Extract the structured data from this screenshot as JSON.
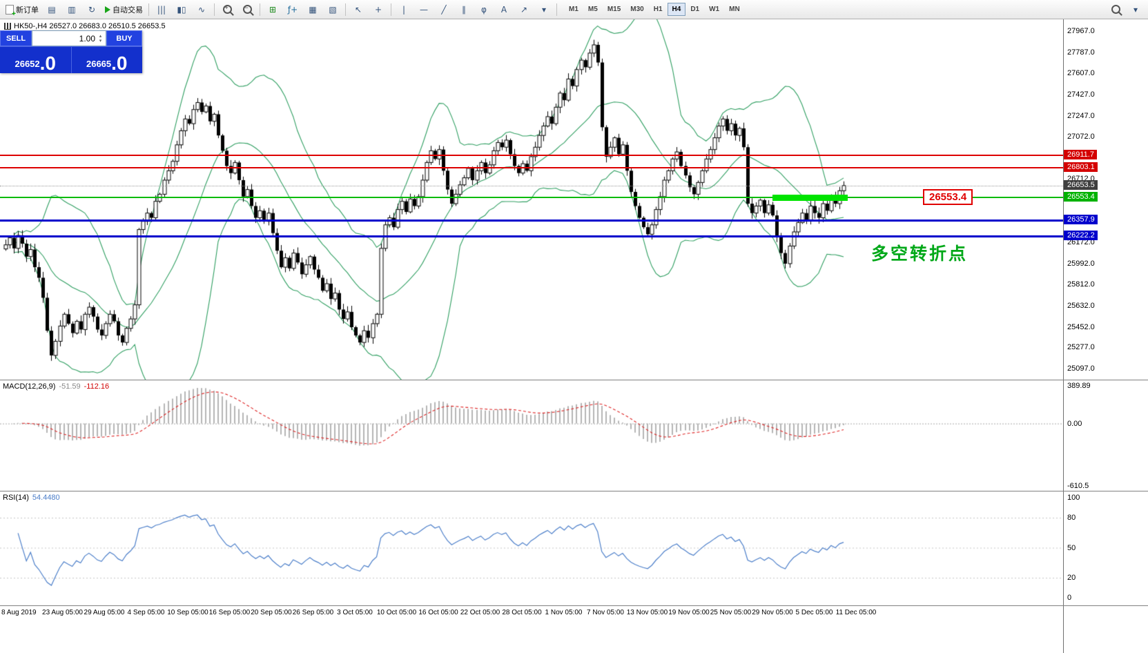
{
  "toolbar": {
    "items": [
      {
        "name": "new-order-button",
        "label": "新订单",
        "icon": "document-plus-icon"
      },
      {
        "name": "charts-profile-button",
        "glyph": "▤"
      },
      {
        "name": "data-window-button",
        "glyph": "▥"
      },
      {
        "name": "refresh-button",
        "glyph": "↻"
      },
      {
        "name": "autotrading-button",
        "label": "自动交易",
        "icon": "play-icon"
      },
      {
        "type": "sep"
      },
      {
        "name": "bar-chart-button",
        "glyph": "|||"
      },
      {
        "name": "candlestick-chart-button",
        "glyph": "▮▯"
      },
      {
        "name": "line-chart-button",
        "glyph": "∿"
      },
      {
        "type": "sep"
      },
      {
        "name": "zoom-in-button",
        "icon": "magnifier-plus-icon"
      },
      {
        "name": "zoom-out-button",
        "icon": "magnifier-minus-icon"
      },
      {
        "type": "sep"
      },
      {
        "name": "tile-windows-button",
        "glyph": "⊞",
        "color": "#1d8a1d"
      },
      {
        "name": "indicators-button",
        "glyph": "ƒ+",
        "color": "#1d6a9a"
      },
      {
        "name": "new-chart-button",
        "glyph": "▦"
      },
      {
        "name": "navigator-button",
        "glyph": "▧"
      },
      {
        "type": "sep"
      },
      {
        "name": "cursor-button",
        "glyph": "↖"
      },
      {
        "name": "crosshair-button",
        "glyph": "+"
      },
      {
        "type": "sep"
      },
      {
        "name": "vertical-line-button",
        "glyph": "|"
      },
      {
        "name": "horizontal-line-button",
        "glyph": "—"
      },
      {
        "name": "trendline-button",
        "glyph": "╱"
      },
      {
        "name": "channel-button",
        "glyph": "∥"
      },
      {
        "name": "fibonacci-button",
        "glyph": "φ"
      },
      {
        "name": "text-button",
        "glyph": "A"
      },
      {
        "name": "arrow-objects-button",
        "glyph": "↗"
      },
      {
        "name": "shapes-button",
        "glyph": "▾"
      },
      {
        "type": "sep"
      }
    ],
    "timeframes": [
      "M1",
      "M5",
      "M15",
      "M30",
      "H1",
      "H4",
      "D1",
      "W1",
      "MN"
    ],
    "active_timeframe": "H4",
    "right_items": [
      {
        "name": "search-button",
        "icon": "magnifier-icon"
      },
      {
        "name": "quick-menu-button",
        "glyph": "▾"
      }
    ]
  },
  "symbol_info": "HK50-,H4   26527.0 26683.0 26510.5 26653.5",
  "trade_panel": {
    "sell_label": "SELL",
    "buy_label": "BUY",
    "volume": "1.00",
    "sell_price_main": "26652",
    "sell_price_frac": ".0",
    "buy_price_main": "26665",
    "buy_price_frac": ".0"
  },
  "price_axis": {
    "labels": [
      "27967.0",
      "27787.0",
      "27607.0",
      "27427.0",
      "27247.0",
      "27072.0",
      "26712.0",
      "26172.0",
      "25992.0",
      "25812.0",
      "25632.0",
      "25452.0",
      "25277.0",
      "25097.0"
    ],
    "badges": [
      {
        "text": "26911.7",
        "bg": "#d40000"
      },
      {
        "text": "26803.1",
        "bg": "#d40000"
      },
      {
        "text": "26653.5",
        "bg": "#3f3f3f"
      },
      {
        "text": "26553.4",
        "bg": "#00b200"
      },
      {
        "text": "26357.9",
        "bg": "#0000cc"
      },
      {
        "text": "26222.2",
        "bg": "#0000cc"
      }
    ]
  },
  "annotations": {
    "price_flag": "26553.4",
    "turning_point": "多空转折点",
    "highlight": {
      "from": 184,
      "to": 201,
      "value": 26553.4
    }
  },
  "chart_data": [
    {
      "type": "candlestick",
      "title": "HK50-,H4",
      "timeframe": "H4",
      "ohlc_line": {
        "open": "26527.0",
        "high": "26683.0",
        "low": "26510.5",
        "close": "26653.5"
      },
      "ylim": [
        25004,
        28067
      ],
      "x_labels": [
        "8 Aug 2019",
        "23 Aug 05:00",
        "29 Aug 05:00",
        "4 Sep 05:00",
        "10 Sep 05:00",
        "16 Sep 05:00",
        "20 Sep 05:00",
        "26 Sep 05:00",
        "3 Oct 05:00",
        "10 Oct 05:00",
        "16 Oct 05:00",
        "22 Oct 05:00",
        "28 Oct 05:00",
        "1 Nov 05:00",
        "7 Nov 05:00",
        "13 Nov 05:00",
        "19 Nov 05:00",
        "25 Nov 05:00",
        "29 Nov 05:00",
        "5 Dec 05:00",
        "11 Dec 05:00"
      ],
      "closes": [
        26150,
        26210,
        26120,
        26230,
        26160,
        26050,
        26110,
        25960,
        25870,
        25700,
        25420,
        25210,
        25330,
        25460,
        25560,
        25480,
        25400,
        25500,
        25430,
        25560,
        25620,
        25540,
        25430,
        25380,
        25480,
        25560,
        25500,
        25380,
        25320,
        25440,
        25520,
        25640,
        26280,
        26350,
        26420,
        26380,
        26520,
        26580,
        26700,
        26780,
        26860,
        27000,
        27120,
        27220,
        27180,
        27300,
        27360,
        27280,
        27330,
        27200,
        27260,
        27080,
        26950,
        26820,
        26760,
        26850,
        26700,
        26560,
        26620,
        26480,
        26380,
        26440,
        26350,
        26420,
        26250,
        26100,
        25960,
        26040,
        25950,
        26080,
        26000,
        25900,
        25980,
        26050,
        25940,
        25870,
        25760,
        25820,
        25690,
        25740,
        25600,
        25520,
        25580,
        25450,
        25380,
        25320,
        25420,
        25360,
        25480,
        25560,
        26120,
        26320,
        26380,
        26300,
        26450,
        26520,
        26430,
        26540,
        26480,
        26560,
        26700,
        26850,
        26950,
        26880,
        26960,
        26780,
        26620,
        26500,
        26580,
        26660,
        26720,
        26800,
        26700,
        26780,
        26850,
        26760,
        26830,
        26950,
        27020,
        26980,
        27040,
        26920,
        26820,
        26760,
        26840,
        26780,
        26900,
        26980,
        27080,
        27160,
        27240,
        27180,
        27320,
        27440,
        27380,
        27560,
        27500,
        27640,
        27720,
        27660,
        27780,
        27850,
        27700,
        27150,
        26900,
        26980,
        27060,
        26920,
        27000,
        26780,
        26600,
        26480,
        26380,
        26300,
        26240,
        26320,
        26450,
        26560,
        26700,
        26780,
        26880,
        26940,
        26820,
        26740,
        26640,
        26580,
        26680,
        26780,
        26880,
        26960,
        27060,
        27160,
        27220,
        27120,
        27180,
        27080,
        27140,
        26980,
        26500,
        26420,
        26480,
        26530,
        26420,
        26490,
        26400,
        26220,
        26080,
        25990,
        26140,
        26260,
        26340,
        26420,
        26360,
        26480,
        26420,
        26380,
        26500,
        26440,
        26560,
        26500,
        26610,
        26653.5
      ],
      "overlays": {
        "bollinger": {
          "period": 20,
          "deviation": 2,
          "color": "#2e9e60"
        },
        "hlines": [
          {
            "value": 26911.7,
            "color": "#dd0000",
            "width": 2
          },
          {
            "value": 26803.1,
            "color": "#dd0000",
            "width": 2
          },
          {
            "value": 26653.5,
            "color": "#999999",
            "width": 1,
            "style": "dotted"
          },
          {
            "value": 26553.4,
            "color": "#00bb00",
            "width": 2
          },
          {
            "value": 26357.9,
            "color": "#0000cc",
            "width": 3
          },
          {
            "value": 26222.2,
            "color": "#0000cc",
            "width": 3
          }
        ]
      }
    },
    {
      "type": "macd",
      "label": "MACD(12,26,9)",
      "value": "-51.59",
      "signal_value": "-112.16",
      "params": [
        12,
        26,
        9
      ],
      "scale_max": 389.89,
      "scale_min": -610.5,
      "axis_labels": [
        "389.89",
        "0.00",
        "-610.5"
      ],
      "colors": {
        "histogram": "#b4b4b4",
        "signal": "#dd2222"
      }
    },
    {
      "type": "rsi",
      "label": "RSI(14)",
      "value": "54.4480",
      "period": 14,
      "levels": [
        100,
        80,
        50,
        20,
        0
      ],
      "color": "#4b7ec9"
    }
  ]
}
